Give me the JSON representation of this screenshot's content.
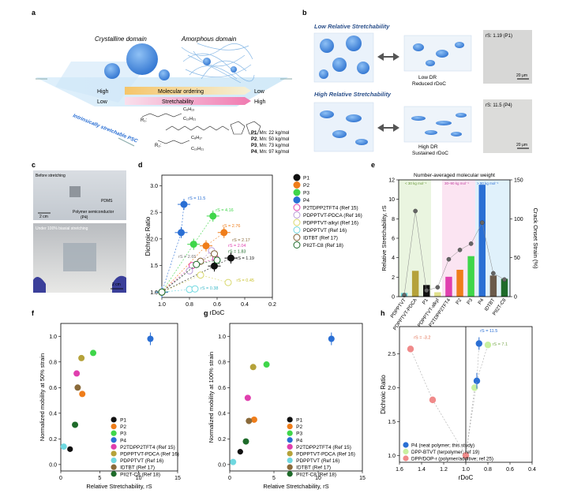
{
  "panel_labels": {
    "a": "a",
    "b": "b",
    "c": "c",
    "d": "d",
    "e": "e",
    "f": "f",
    "g": "g",
    "h": "h"
  },
  "panel_a": {
    "crystalline": "Crystalline domain",
    "amorphous": "Amorphous domain",
    "high_left": "High",
    "low_left": "Low",
    "molecular_ordering": "Molecular ordering",
    "stretchability": "Stretchability",
    "low_right": "Low",
    "high_right": "High",
    "side_text": "Intrinsically stretchable PSC",
    "polymers": [
      {
        "id": "P1",
        "mn": ", Mn: 22 kg/mol"
      },
      {
        "id": "P2",
        "mn": ", Mn: 50 kg/mol"
      },
      {
        "id": "P3",
        "mn": ", Mn: 73 kg/mol"
      },
      {
        "id": "P4",
        "mn": ", Mn: 97 kg/mol"
      }
    ],
    "r1": "R₁:",
    "r2": "R₂:",
    "r1_sub_top": "C₆H₁₃",
    "r1_sub_bot": "C₁₀H₂₁",
    "r2_sub_top": "C₈H₁₇",
    "r2_sub_bot": "C₁₀H₂₁"
  },
  "panel_b": {
    "low_title": "Low Relative Stretchability",
    "high_title": "High Relative Stretchability",
    "low_dr": "Low DR",
    "low_rdoc": "Reduced rDoC",
    "high_dr": "High DR",
    "high_rdoc": "Sustained rDoC",
    "img1_label": "rS: 1.19 (P1)",
    "img2_label": "rS: 11.5 (P4)",
    "scale": "20 μm"
  },
  "panel_c": {
    "before": "Before stretching",
    "pdms": "PDMS",
    "polymer": "Polymer semiconductor",
    "p4": "(P4)",
    "scale": "2 cm",
    "under": "Under 100% biaxial stretching",
    "scale2": "2 cm"
  },
  "chart_data": [
    {
      "panel": "d",
      "type": "scatter",
      "xlabel": "rDoC",
      "ylabel": "Dichroic Ratio",
      "xlim": [
        1.0,
        0.2
      ],
      "ylim": [
        0.9,
        3.2
      ],
      "xticks": [
        "1.0",
        "0.8",
        "0.6",
        "0.4",
        "0.2"
      ],
      "yticks": [
        "1.0",
        "1.5",
        "2.0",
        "2.5",
        "3.0"
      ],
      "series": [
        {
          "name": "P1",
          "color": "#111111",
          "filled": true,
          "points": [
            [
              1.0,
              1.0
            ],
            [
              0.62,
              1.49
            ],
            [
              0.5,
              1.64
            ]
          ]
        },
        {
          "name": "P2",
          "color": "#ef7d1a",
          "filled": true,
          "points": [
            [
              1.0,
              1.0
            ],
            [
              0.68,
              1.87
            ],
            [
              0.55,
              2.12
            ]
          ]
        },
        {
          "name": "P3",
          "color": "#3fd64a",
          "filled": true,
          "points": [
            [
              1.0,
              1.0
            ],
            [
              0.77,
              1.9
            ],
            [
              0.63,
              2.43
            ]
          ]
        },
        {
          "name": "P4",
          "color": "#2a6fd4",
          "filled": true,
          "points": [
            [
              1.0,
              1.0
            ],
            [
              0.86,
              2.12
            ],
            [
              0.84,
              2.65
            ]
          ]
        },
        {
          "name": "P2TDPP2TFT4 (Ref 15)",
          "color": "#e03fae",
          "filled": false,
          "points": [
            [
              1.0,
              1.0
            ],
            [
              0.78,
              1.5
            ],
            [
              0.61,
              1.63
            ]
          ]
        },
        {
          "name": "PDPPTVT-PDCA (Ref 16)",
          "color": "#b89bd8",
          "filled": false,
          "points": [
            [
              1.0,
              1.0
            ],
            [
              0.8,
              1.4
            ],
            [
              0.64,
              1.78
            ]
          ]
        },
        {
          "name": "PDPPTVT-alkyl (Ref 16)",
          "color": "#d8d86a",
          "filled": false,
          "points": [
            [
              1.0,
              1.0
            ],
            [
              0.72,
              1.32
            ],
            [
              0.52,
              1.18
            ]
          ]
        },
        {
          "name": "PDPPTVT (Ref 16)",
          "color": "#6fd8e0",
          "filled": false,
          "points": [
            [
              1.0,
              1.0
            ],
            [
              0.8,
              1.05
            ],
            [
              0.76,
              1.06
            ]
          ]
        },
        {
          "name": "IDTBT (Ref 17)",
          "color": "#7a5a30",
          "filled": false,
          "points": [
            [
              1.0,
              1.0
            ],
            [
              0.72,
              1.58
            ],
            [
              0.62,
              1.72
            ]
          ]
        },
        {
          "name": "PII2T-C8 (Ref 18)",
          "color": "#1e6b2a",
          "filled": false,
          "points": [
            [
              1.0,
              1.0
            ],
            [
              0.75,
              1.52
            ],
            [
              0.6,
              1.6
            ]
          ]
        }
      ],
      "annotations": [
        "rS = 11.5",
        "rS = 4.16",
        "rS = 2.76",
        "rS = 2.17",
        "rS = 2.04",
        "rS = 1.83",
        "rS = 1.19",
        "rS = 2.65",
        "rS = 0.45",
        "rS = 0.38"
      ]
    },
    {
      "panel": "e",
      "type": "bar",
      "title": "Number-averaged molecular weight",
      "ylabel": "Relative Stretchability, rS",
      "ylabel2": "Crack Onset Strain (%)",
      "ylim": [
        0,
        12
      ],
      "ylim2": [
        0,
        150
      ],
      "yticks": [
        "0",
        "2",
        "4",
        "6",
        "8",
        "10",
        "12"
      ],
      "yticks2": [
        "0",
        "50",
        "100",
        "150"
      ],
      "region_labels": [
        "< 30 kg mol⁻¹",
        "30–90 kg mol⁻¹",
        "> 90 kg mol⁻¹"
      ],
      "categories": [
        "PDPPTVT",
        "PDPPTVT-PDCA",
        "P1",
        "PDPPTVT-alkyl",
        "P2TDPP2TFT4",
        "P2",
        "P3",
        "P4",
        "IDTBT",
        "PII2T-C8"
      ],
      "values": [
        0.38,
        2.65,
        1.19,
        0.45,
        2.04,
        2.76,
        4.16,
        11.5,
        2.17,
        1.83
      ],
      "colors": [
        "#6fd8e0",
        "#b5a23a",
        "#111111",
        "#e0e08a",
        "#e03fae",
        "#ef7d1a",
        "#3fd64a",
        "#2a6fd4",
        "#6b5a4a",
        "#1e6b2a"
      ],
      "cos": [
        2,
        110,
        8,
        12,
        48,
        60,
        68,
        95,
        30,
        22
      ]
    },
    {
      "panel": "f",
      "type": "scatter",
      "xlabel": "Relative Stretchability, rS",
      "ylabel": "Normalized mobility at 50% strain",
      "xlim": [
        0,
        15
      ],
      "ylim": [
        -0.05,
        1.1
      ],
      "xticks": [
        "0",
        "5",
        "10",
        "15"
      ],
      "yticks": [
        "0.0",
        "0.2",
        "0.4",
        "0.6",
        "0.8",
        "1.0"
      ],
      "points": [
        {
          "name": "P1",
          "x": 1.19,
          "y": 0.12,
          "color": "#111111"
        },
        {
          "name": "P2",
          "x": 2.76,
          "y": 0.55,
          "color": "#ef7d1a"
        },
        {
          "name": "P3",
          "x": 4.16,
          "y": 0.87,
          "color": "#3fd64a"
        },
        {
          "name": "P4",
          "x": 11.5,
          "y": 0.98,
          "color": "#2a6fd4"
        },
        {
          "name": "P2TDPP2TFT4 (Ref 15)",
          "x": 2.04,
          "y": 0.71,
          "color": "#e03fae"
        },
        {
          "name": "PDPPTVT-PDCA (Ref 16)",
          "x": 2.65,
          "y": 0.83,
          "color": "#b5a23a"
        },
        {
          "name": "PDPPTVT (Ref 16)",
          "x": 0.38,
          "y": 0.14,
          "color": "#6fd8e0"
        },
        {
          "name": "IDTBT (Ref 17)",
          "x": 2.17,
          "y": 0.6,
          "color": "#8a6a3a"
        },
        {
          "name": "PII2T-C8 (Ref 18)",
          "x": 1.83,
          "y": 0.31,
          "color": "#1e6b2a"
        }
      ]
    },
    {
      "panel": "g",
      "type": "scatter",
      "xlabel": "Relative Stretchability, rS",
      "ylabel": "Normalized mobility at 100% strain",
      "xlim": [
        0,
        15
      ],
      "ylim": [
        -0.05,
        1.1
      ],
      "xticks": [
        "0",
        "5",
        "10",
        "15"
      ],
      "yticks": [
        "0.0",
        "0.2",
        "0.4",
        "0.6",
        "0.8",
        "1.0"
      ],
      "points": [
        {
          "name": "P1",
          "x": 1.19,
          "y": 0.1,
          "color": "#111111"
        },
        {
          "name": "P2",
          "x": 2.76,
          "y": 0.35,
          "color": "#ef7d1a"
        },
        {
          "name": "P3",
          "x": 4.16,
          "y": 0.78,
          "color": "#3fd64a"
        },
        {
          "name": "P4",
          "x": 11.5,
          "y": 0.98,
          "color": "#2a6fd4"
        },
        {
          "name": "P2TDPP2TFT4 (Ref 15)",
          "x": 2.04,
          "y": 0.52,
          "color": "#e03fae"
        },
        {
          "name": "PDPPTVT-PDCA (Ref 16)",
          "x": 2.65,
          "y": 0.76,
          "color": "#b5a23a"
        },
        {
          "name": "PDPPTVT (Ref 16)",
          "x": 0.38,
          "y": 0.02,
          "color": "#6fd8e0"
        },
        {
          "name": "IDTBT (Ref 17)",
          "x": 2.17,
          "y": 0.34,
          "color": "#8a6a3a"
        },
        {
          "name": "PII2T-C8 (Ref 18)",
          "x": 1.83,
          "y": 0.18,
          "color": "#1e6b2a"
        }
      ]
    },
    {
      "panel": "h",
      "type": "line",
      "xlabel": "rDoC",
      "ylabel": "Dichroic Ratio",
      "xlim": [
        1.6,
        0.4
      ],
      "ylim": [
        0.9,
        2.9
      ],
      "xticks": [
        "1.6",
        "1.4",
        "1.2",
        "1.0",
        "0.8",
        "0.6",
        "0.4"
      ],
      "yticks": [
        "1.0",
        "1.5",
        "2.0",
        "2.5"
      ],
      "series": [
        {
          "name": "P4 (neat polymer; this study)",
          "color": "#2a6fd4",
          "points": [
            [
              1.0,
              1.0
            ],
            [
              0.9,
              2.1
            ],
            [
              0.88,
              2.65
            ]
          ]
        },
        {
          "name": "DPP-BTVT (terpolymer; ref 19)",
          "color": "#c8f0a0",
          "points": [
            [
              1.0,
              1.0
            ],
            [
              0.92,
              2.0
            ],
            [
              0.8,
              2.63
            ]
          ]
        },
        {
          "name": "DPP/DOP-r (polymer/additive; ref 25)",
          "color": "#f08a8a",
          "points": [
            [
              1.0,
              1.0
            ],
            [
              1.3,
              1.82
            ],
            [
              1.5,
              2.57
            ]
          ]
        }
      ],
      "annotations": [
        "rS = 11.5",
        "rS = 7.1",
        "rS = -3.2"
      ]
    }
  ]
}
